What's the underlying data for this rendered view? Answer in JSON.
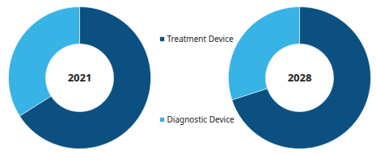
{
  "chart_data": [
    {
      "type": "pie",
      "title": "2021",
      "categories": [
        "Treatment Device",
        "Diagnostic Device"
      ],
      "values": [
        66,
        34
      ],
      "colors": [
        "#0b5080",
        "#38b3e6"
      ]
    },
    {
      "type": "pie",
      "title": "2028",
      "categories": [
        "Treatment Device",
        "Diagnostic Device"
      ],
      "values": [
        70,
        30
      ],
      "colors": [
        "#0b5080",
        "#38b3e6"
      ]
    }
  ]
}
